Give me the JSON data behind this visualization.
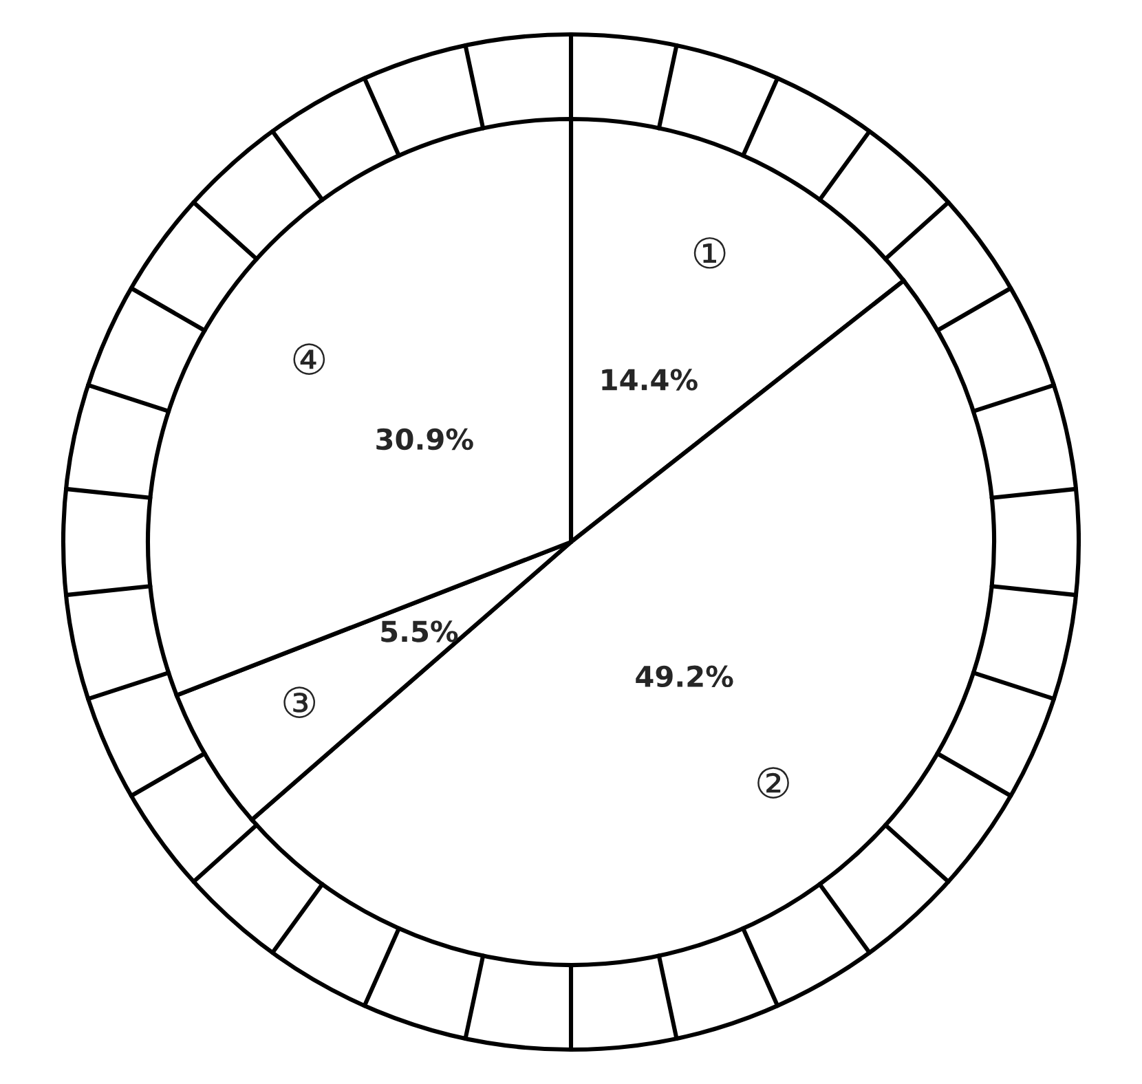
{
  "chart_data": {
    "type": "pie",
    "categories": [
      "①",
      "②",
      "③",
      "④"
    ],
    "values": [
      14.4,
      49.2,
      5.5,
      30.9
    ],
    "value_labels": [
      "14.4%",
      "49.2%",
      "5.5%",
      "30.9%"
    ],
    "colors": [
      "#ffffff",
      "#ffffff",
      "#ffffff",
      "#ffffff"
    ]
  }
}
